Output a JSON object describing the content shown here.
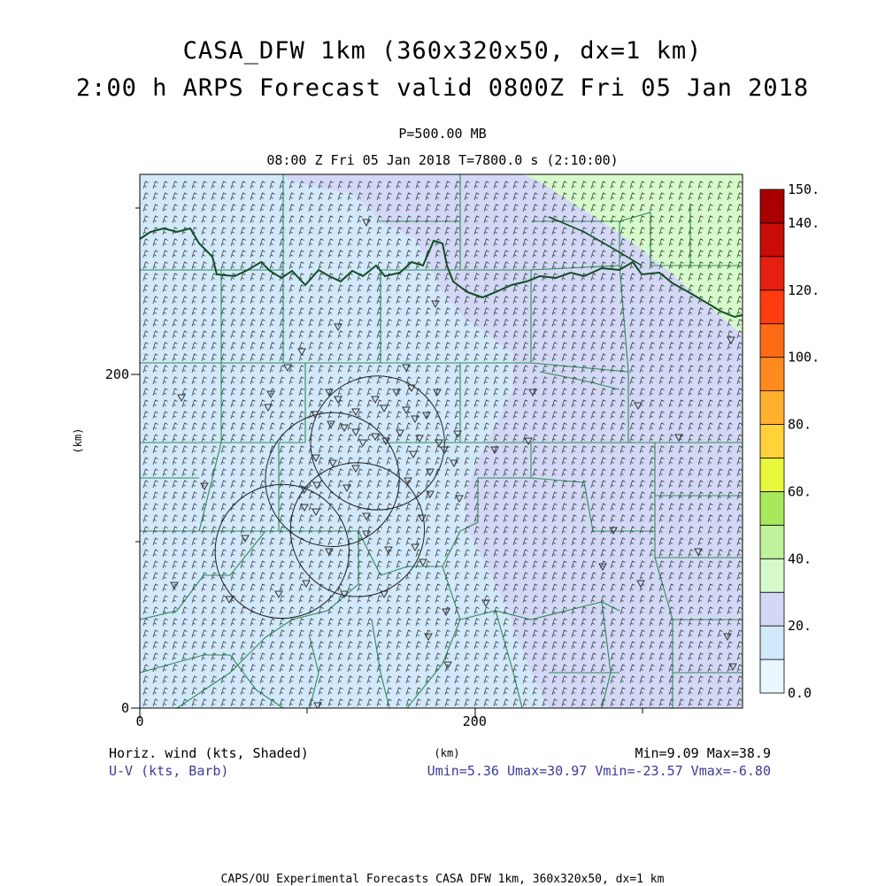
{
  "header": {
    "title_line1": "CASA_DFW 1km (360x320x50, dx=1 km)",
    "title_line2": "2:00 h ARPS Forecast valid 0800Z Fri 05 Jan 2018",
    "level": "P=500.00 MB",
    "time": "08:00 Z Fri 05 Jan 2018    T=7800.0 s (2:10:00)"
  },
  "footer": {
    "field1": "Horiz. wind (kts, Shaded)",
    "field2": "U-V (kts, Barb)",
    "minmax": "Min=9.09 Max=38.9",
    "uv_stats": "Umin=5.36 Umax=30.97 Vmin=-23.57 Vmax=-6.80",
    "credit": "CAPS/OU Experimental Forecasts  CASA DFW 1km, 360x320x50, dx=1 km"
  },
  "chart_data": {
    "type": "heatmap",
    "field": "horizontal wind speed (kts)",
    "xlabel": "(km)",
    "ylabel": "(km)",
    "xlim": [
      0,
      360
    ],
    "ylim": [
      0,
      320
    ],
    "x_ticks": [
      0,
      200
    ],
    "y_ticks": [
      0,
      200
    ],
    "min": 9.09,
    "max": 38.9,
    "colorbar": {
      "levels": [
        0,
        10,
        20,
        30,
        40,
        50,
        60,
        70,
        80,
        90,
        100,
        110,
        120,
        130,
        140,
        150
      ],
      "labels": [
        "0.0",
        "20.",
        "40.",
        "60.",
        "80.",
        "100.",
        "120.",
        "140.",
        "150."
      ],
      "label_values": [
        0,
        20,
        40,
        60,
        80,
        100,
        120,
        140,
        150
      ],
      "colors": [
        "#e8f6fd",
        "#d2e8fb",
        "#d3d8f6",
        "#d6fbcb",
        "#bff29b",
        "#a8e85c",
        "#e8f83a",
        "#ffd23a",
        "#ffb12e",
        "#ff8a1e",
        "#ff6a14",
        "#ff3c10",
        "#e6200e",
        "#c80c08",
        "#a80000"
      ]
    },
    "shading": [
      {
        "range": "10-20 kts",
        "color": "#d2e8fb",
        "region": "west and central"
      },
      {
        "range": "20-30 kts",
        "color": "#d3d8f6",
        "region": "east and southeast"
      },
      {
        "range": "30-40 kts",
        "color": "#d6fbcb",
        "region": "northeast corner"
      }
    ],
    "wind_barbs": {
      "u_range": [
        5.36,
        30.97
      ],
      "v_range": [
        -23.57,
        -6.8
      ]
    },
    "radar_rings": [
      {
        "x": 142,
        "y": 159,
        "r": 40
      },
      {
        "x": 115,
        "y": 137,
        "r": 40
      },
      {
        "x": 130,
        "y": 107,
        "r": 40
      },
      {
        "x": 85,
        "y": 94,
        "r": 40
      }
    ]
  }
}
